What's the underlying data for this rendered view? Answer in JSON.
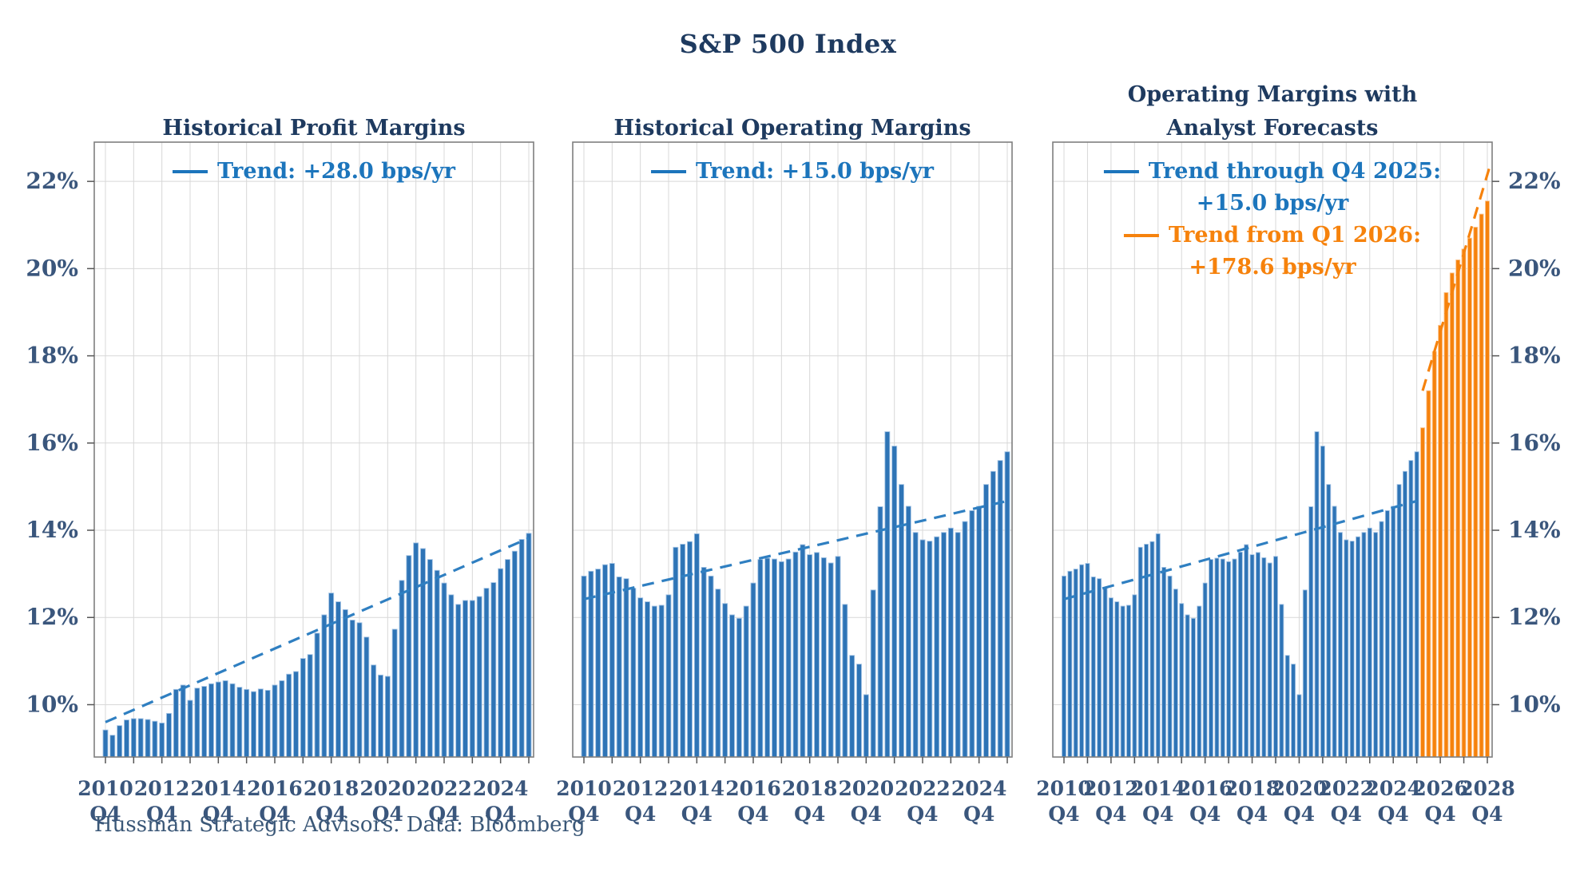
{
  "page": {
    "title": "S&P 500 Index",
    "footer": "Hussman Strategic Advisors. Data: Bloomberg"
  },
  "colors": {
    "bar_blue": "#2e74b6",
    "bar_blue_edge": "#a3c3e4",
    "bar_orange": "#f6820c",
    "bar_orange_edge": "#fbc48f",
    "trend_blue": "#2f7fc1",
    "trend_orange": "#f6820c",
    "title_navy": "#1e3a5f",
    "tick_label": "#3a567c",
    "legend_blue": "#1c75bc",
    "grid": "#d8d8d8",
    "frame": "#7f7f7f"
  },
  "chart_data": [
    {
      "type": "bar",
      "title": "Historical Profit Margins",
      "title_lines": [
        "Historical Profit Margins"
      ],
      "x_start": "2010 Q4",
      "frequency": "quarterly",
      "x_tick_labels": [
        "2010 Q4",
        "2012 Q4",
        "2014 Q4",
        "2016 Q4",
        "2018 Q4",
        "2020 Q4",
        "2022 Q4",
        "2024 Q4"
      ],
      "y_tick_labels": [
        "10%",
        "12%",
        "14%",
        "16%",
        "18%",
        "20%",
        "22%"
      ],
      "y_tick_values": [
        10,
        12,
        14,
        16,
        18,
        20,
        22
      ],
      "ylim": [
        8.8,
        22.9
      ],
      "y_axis_side": "left",
      "grid": "on",
      "legend": [
        {
          "label": "Trend: +28.0 bps/yr",
          "lines": [
            "Trend: +28.0 bps/yr"
          ],
          "color": "blue"
        }
      ],
      "series": [
        {
          "name": "Profit margin",
          "color": "blue",
          "start": "2010 Q4",
          "values": [
            9.42,
            9.3,
            9.52,
            9.65,
            9.68,
            9.68,
            9.66,
            9.62,
            9.58,
            9.8,
            10.35,
            10.45,
            10.1,
            10.38,
            10.42,
            10.48,
            10.52,
            10.55,
            10.48,
            10.4,
            10.35,
            10.3,
            10.36,
            10.33,
            10.45,
            10.55,
            10.7,
            10.76,
            11.06,
            11.15,
            11.64,
            12.06,
            12.56,
            12.36,
            12.18,
            11.94,
            11.88,
            11.55,
            10.91,
            10.68,
            10.65,
            11.73,
            12.85,
            13.42,
            13.71,
            13.58,
            13.33,
            13.08,
            12.79,
            12.52,
            12.3,
            12.39,
            12.39,
            12.48,
            12.67,
            12.8,
            13.12,
            13.33,
            13.52,
            13.79,
            13.93
          ]
        }
      ],
      "trends": [
        {
          "label": "Trend: +28.0 bps/yr",
          "slope_bps_per_yr": 28.0,
          "style": "dashed",
          "color": "blue",
          "from_index": 0,
          "from_value": 9.6,
          "to_index": 60,
          "to_value": 13.82,
          "from_q": "2010 Q4",
          "to_q": "2025 Q4"
        }
      ]
    },
    {
      "type": "bar",
      "title": "Historical Operating Margins",
      "title_lines": [
        "Historical Operating Margins"
      ],
      "x_start": "2010 Q4",
      "frequency": "quarterly",
      "x_tick_labels": [
        "2010 Q4",
        "2012 Q4",
        "2014 Q4",
        "2016 Q4",
        "2018 Q4",
        "2020 Q4",
        "2022 Q4",
        "2024 Q4"
      ],
      "y_tick_labels": [
        "10%",
        "12%",
        "14%",
        "16%",
        "18%",
        "20%",
        "22%"
      ],
      "y_tick_values": [
        10,
        12,
        14,
        16,
        18,
        20,
        22
      ],
      "ylim": [
        8.8,
        22.9
      ],
      "y_axis_side": "none",
      "grid": "on",
      "legend": [
        {
          "label": "Trend: +15.0 bps/yr",
          "lines": [
            "Trend: +15.0 bps/yr"
          ],
          "color": "blue"
        }
      ],
      "series": [
        {
          "name": "Operating margin",
          "color": "blue",
          "start": "2010 Q4",
          "values": [
            12.95,
            13.06,
            13.11,
            13.21,
            13.24,
            12.93,
            12.89,
            12.67,
            12.45,
            12.36,
            12.26,
            12.28,
            12.52,
            13.61,
            13.68,
            13.74,
            13.92,
            13.15,
            12.95,
            12.65,
            12.32,
            12.06,
            11.98,
            12.26,
            12.79,
            13.33,
            13.36,
            13.34,
            13.28,
            13.34,
            13.5,
            13.67,
            13.44,
            13.49,
            13.37,
            13.25,
            13.4,
            12.3,
            11.13,
            10.93,
            10.23,
            12.63,
            14.54,
            16.26,
            15.93,
            15.05,
            14.55,
            13.95,
            13.78,
            13.75,
            13.85,
            13.95,
            14.05,
            13.95,
            14.2,
            14.45,
            14.55,
            15.05,
            15.35,
            15.6,
            15.8
          ]
        }
      ],
      "trends": [
        {
          "label": "Trend: +15.0 bps/yr",
          "slope_bps_per_yr": 15.0,
          "style": "dashed",
          "color": "blue",
          "from_index": 0,
          "from_value": 12.42,
          "to_index": 60,
          "to_value": 14.67,
          "from_q": "2010 Q4",
          "to_q": "2025 Q4"
        }
      ]
    },
    {
      "type": "bar",
      "title": "Operating Margins with Analyst Forecasts",
      "title_lines": [
        "Operating Margins with",
        "Analyst Forecasts"
      ],
      "x_start": "2010 Q4",
      "frequency": "quarterly",
      "x_tick_labels": [
        "2010 Q4",
        "2012 Q4",
        "2014 Q4",
        "2016 Q4",
        "2018 Q4",
        "2020 Q4",
        "2022 Q4",
        "2024 Q4",
        "2026 Q4",
        "2028 Q4"
      ],
      "y_tick_labels": [
        "10%",
        "12%",
        "14%",
        "16%",
        "18%",
        "20%",
        "22%"
      ],
      "y_tick_values": [
        10,
        12,
        14,
        16,
        18,
        20,
        22
      ],
      "ylim": [
        8.8,
        22.9
      ],
      "y_axis_side": "right",
      "grid": "on",
      "legend": [
        {
          "label": "Trend through Q4 2025: +15.0 bps/yr",
          "lines": [
            "Trend through Q4 2025:",
            "+15.0 bps/yr"
          ],
          "color": "blue"
        },
        {
          "label": "Trend from Q1 2026: +178.6 bps/yr",
          "lines": [
            "Trend from Q1 2026:",
            "+178.6 bps/yr"
          ],
          "color": "orange"
        }
      ],
      "series": [
        {
          "name": "Operating margin (actual)",
          "color": "blue",
          "start": "2010 Q4",
          "values": [
            12.95,
            13.06,
            13.11,
            13.21,
            13.24,
            12.93,
            12.89,
            12.67,
            12.45,
            12.36,
            12.26,
            12.28,
            12.52,
            13.61,
            13.68,
            13.74,
            13.92,
            13.15,
            12.95,
            12.65,
            12.32,
            12.06,
            11.98,
            12.26,
            12.79,
            13.33,
            13.36,
            13.34,
            13.28,
            13.34,
            13.5,
            13.67,
            13.44,
            13.49,
            13.37,
            13.25,
            13.4,
            12.3,
            11.13,
            10.93,
            10.23,
            12.63,
            14.54,
            16.26,
            15.93,
            15.05,
            14.55,
            13.95,
            13.78,
            13.75,
            13.85,
            13.95,
            14.05,
            13.95,
            14.2,
            14.45,
            14.55,
            15.05,
            15.35,
            15.6,
            15.8
          ]
        },
        {
          "name": "Analyst forecasts",
          "color": "orange",
          "start": "2026 Q1",
          "values": [
            16.35,
            17.2,
            18.1,
            18.7,
            19.45,
            19.9,
            20.2,
            20.45,
            20.7,
            20.95,
            21.25,
            21.55
          ]
        }
      ],
      "trends": [
        {
          "label": "Trend through Q4 2025: +15.0 bps/yr",
          "slope_bps_per_yr": 15.0,
          "style": "dashed",
          "color": "blue",
          "from_index": 0,
          "from_value": 12.42,
          "to_index": 60,
          "to_value": 14.67,
          "from_q": "2010 Q4",
          "to_q": "2025 Q4"
        },
        {
          "label": "Trend from Q1 2026: +178.6 bps/yr",
          "slope_bps_per_yr": 178.6,
          "style": "dashed",
          "color": "orange",
          "from_index": 61,
          "from_value": 17.2,
          "to_index": 72.6,
          "to_value": 22.4,
          "from_q": "2026 Q1",
          "to_q": "2028 Q4"
        }
      ]
    }
  ]
}
